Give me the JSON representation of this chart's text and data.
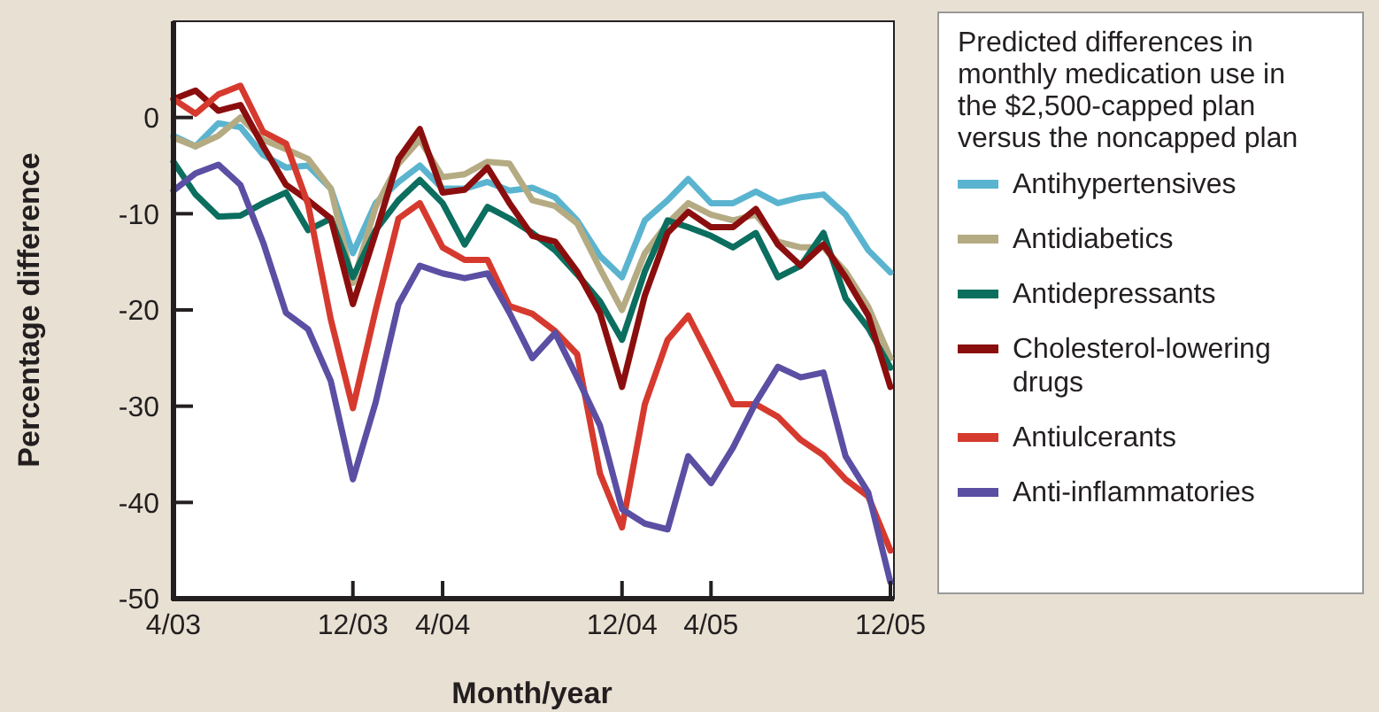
{
  "chart_data": {
    "type": "line",
    "xlabel": "Month/year",
    "ylabel": "Percentage difference",
    "legend_title": "Predicted differences in monthly medication use in the $2,500-capped plan versus the noncapped plan",
    "legend": "right",
    "grid": false,
    "marker": "none",
    "line_style": "solid",
    "x": [
      "2003-04",
      "2003-05",
      "2003-06",
      "2003-07",
      "2003-08",
      "2003-09",
      "2003-10",
      "2003-11",
      "2003-12",
      "2004-01",
      "2004-02",
      "2004-03",
      "2004-04",
      "2004-05",
      "2004-06",
      "2004-07",
      "2004-08",
      "2004-09",
      "2004-10",
      "2004-11",
      "2004-12",
      "2005-01",
      "2005-02",
      "2005-03",
      "2005-04",
      "2005-05",
      "2005-06",
      "2005-07",
      "2005-08",
      "2005-09",
      "2005-10",
      "2005-11",
      "2005-12"
    ],
    "xlim": [
      "2003-04",
      "2005-12"
    ],
    "xticks": [
      {
        "value": "2003-04",
        "label": "4/03"
      },
      {
        "value": "2003-12",
        "label": "12/03"
      },
      {
        "value": "2004-04",
        "label": "4/04"
      },
      {
        "value": "2004-12",
        "label": "12/04"
      },
      {
        "value": "2005-04",
        "label": "4/05"
      },
      {
        "value": "2005-12",
        "label": "12/05"
      }
    ],
    "ylim": [
      -50,
      10
    ],
    "yticks": [
      0,
      -10,
      -20,
      -30,
      -40,
      -50
    ],
    "series": [
      {
        "name": "Antihypertensives",
        "color": "#5ab4cf",
        "values": [
          -1.9,
          -3,
          -0.6,
          -1,
          -3.9,
          -5.2,
          -5,
          -7.4,
          -14.1,
          -8.9,
          -6.7,
          -5,
          -7.4,
          -7.4,
          -6.7,
          -7.6,
          -7.3,
          -8.3,
          -10.7,
          -14.4,
          -16.6,
          -10.7,
          -8.6,
          -6.4,
          -8.9,
          -8.9,
          -7.7,
          -8.9,
          -8.3,
          -8,
          -10.1,
          -13.8,
          -16.1
        ]
      },
      {
        "name": "Antidiabetics",
        "color": "#b5ab83",
        "values": [
          -2.1,
          -3,
          -1.9,
          0,
          -2.3,
          -3.3,
          -4.3,
          -7.4,
          -17.2,
          -9.3,
          -4.8,
          -2.3,
          -6.2,
          -5.9,
          -4.6,
          -4.8,
          -8.6,
          -9.2,
          -11,
          -15.7,
          -20,
          -14.1,
          -11,
          -8.9,
          -10.1,
          -10.7,
          -10.1,
          -12.9,
          -13.5,
          -13.5,
          -16,
          -19.7,
          -25
        ]
      },
      {
        "name": "Antidepressants",
        "color": "#0b6e5f",
        "values": [
          -4.6,
          -8,
          -10.3,
          -10.2,
          -8.9,
          -7.8,
          -11.7,
          -10.5,
          -16.6,
          -11.7,
          -8.6,
          -6.5,
          -8.9,
          -13.2,
          -9.3,
          -10.5,
          -12,
          -13.8,
          -16.3,
          -19.1,
          -23.1,
          -16,
          -10.7,
          -11.4,
          -12.3,
          -13.5,
          -12,
          -16.6,
          -15.4,
          -12,
          -18.8,
          -21.9,
          -26
        ]
      },
      {
        "name": "Cholesterol-lowering drugs",
        "color": "#8b0e0e",
        "values": [
          1.9,
          2.8,
          0.7,
          1.3,
          -3,
          -7,
          -8.6,
          -10.5,
          -19.4,
          -12,
          -4.3,
          -1.2,
          -7.8,
          -7.5,
          -5.2,
          -8.9,
          -12.3,
          -12.9,
          -16,
          -20.3,
          -28,
          -18.5,
          -12,
          -9.8,
          -11.4,
          -11.4,
          -9.5,
          -13.2,
          -15.4,
          -13.2,
          -16.6,
          -20.6,
          -28
        ]
      },
      {
        "name": "Antiulcerants",
        "color": "#d63a2e",
        "values": [
          1.9,
          0.4,
          2.4,
          3.3,
          -1.5,
          -2.7,
          -9,
          -21,
          -30.2,
          -20,
          -10.5,
          -8.9,
          -13.5,
          -14.8,
          -14.8,
          -19.6,
          -20.4,
          -22.2,
          -24.6,
          -37,
          -42.6,
          -29.8,
          -23.1,
          -20.6,
          -25.2,
          -29.8,
          -29.8,
          -31.1,
          -33.5,
          -35.1,
          -37.6,
          -39.4,
          -45
        ]
      },
      {
        "name": "Anti-inflammatories",
        "color": "#5a4fa3",
        "values": [
          -7.6,
          -5.8,
          -4.9,
          -7,
          -13,
          -20.3,
          -22,
          -27.4,
          -37.6,
          -29.6,
          -19.4,
          -15.4,
          -16.2,
          -16.7,
          -16.2,
          -20.3,
          -25,
          -22.4,
          -27,
          -32,
          -40.7,
          -42.2,
          -42.8,
          -35.2,
          -38,
          -34.3,
          -29.6,
          -25.9,
          -27,
          -26.5,
          -35.2,
          -39,
          -48.3
        ]
      }
    ]
  }
}
